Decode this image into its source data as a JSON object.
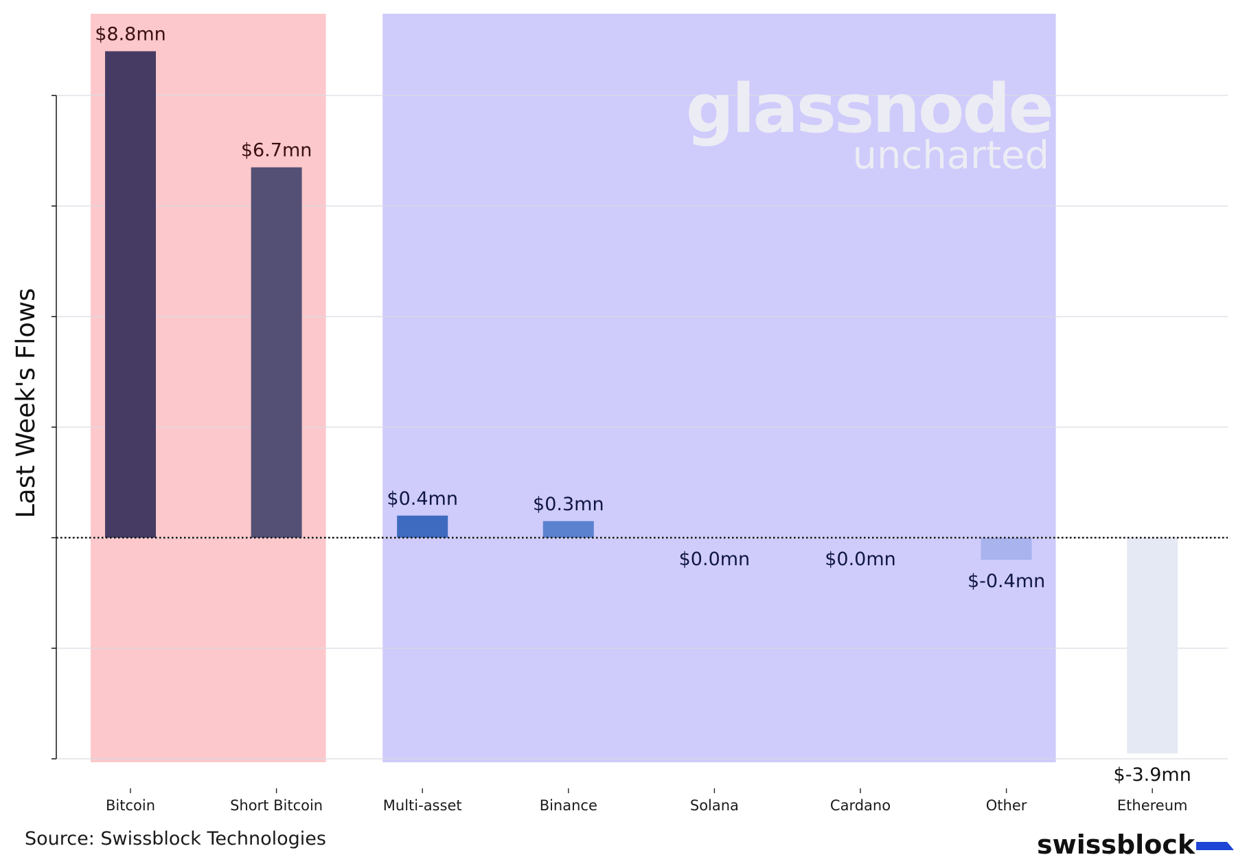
{
  "chart_data": {
    "type": "bar",
    "ylabel": "Last Week's Flows",
    "ylim": [
      -4.0,
      10.0
    ],
    "y_tick_values": [
      -4,
      -2,
      0,
      2,
      4,
      6,
      8
    ],
    "grid": "horizontal",
    "baseline": "dotted line at 0",
    "categories": [
      "Bitcoin",
      "Short Bitcoin",
      "Multi-asset",
      "Binance",
      "Solana",
      "Cardano",
      "Other",
      "Ethereum"
    ],
    "values": [
      8.8,
      6.7,
      0.4,
      0.3,
      0.0,
      0.0,
      -0.4,
      -3.9
    ],
    "data_labels": [
      "$8.8mn",
      "$6.7mn",
      "$0.4mn",
      "$0.3mn",
      "$0.0mn",
      "$0.0mn",
      "$-0.4mn",
      "$-3.9mn"
    ],
    "bar_colors": [
      "#463c63",
      "#545075",
      "#3e6bbf",
      "#5a82cf",
      "#5a82cf",
      "#5a82cf",
      "#a9b3ee",
      "#e4e9f3"
    ],
    "label_colors": [
      "#3a1010",
      "#3a1010",
      "#0f1740",
      "#0f1740",
      "#0f1740",
      "#0f1740",
      "#0f1740",
      "#111111"
    ],
    "highlight_bands": [
      {
        "from_category": "Bitcoin",
        "to_category": "Short Bitcoin",
        "color": "#fdc8cb"
      },
      {
        "from_category": "Multi-asset",
        "to_category": "Other",
        "color": "#cfcbfb"
      }
    ]
  },
  "watermark": {
    "main": "glassnode",
    "sub": "uncharted",
    "color": "#ececf4"
  },
  "footer": {
    "source": "Source: Swissblock Technologies",
    "brand": "swissblock",
    "brand_accent_color": "#1f45d6"
  },
  "colors": {
    "grid": "#d9d9e3",
    "axis": "#222222",
    "text": "#1a1a1a"
  }
}
